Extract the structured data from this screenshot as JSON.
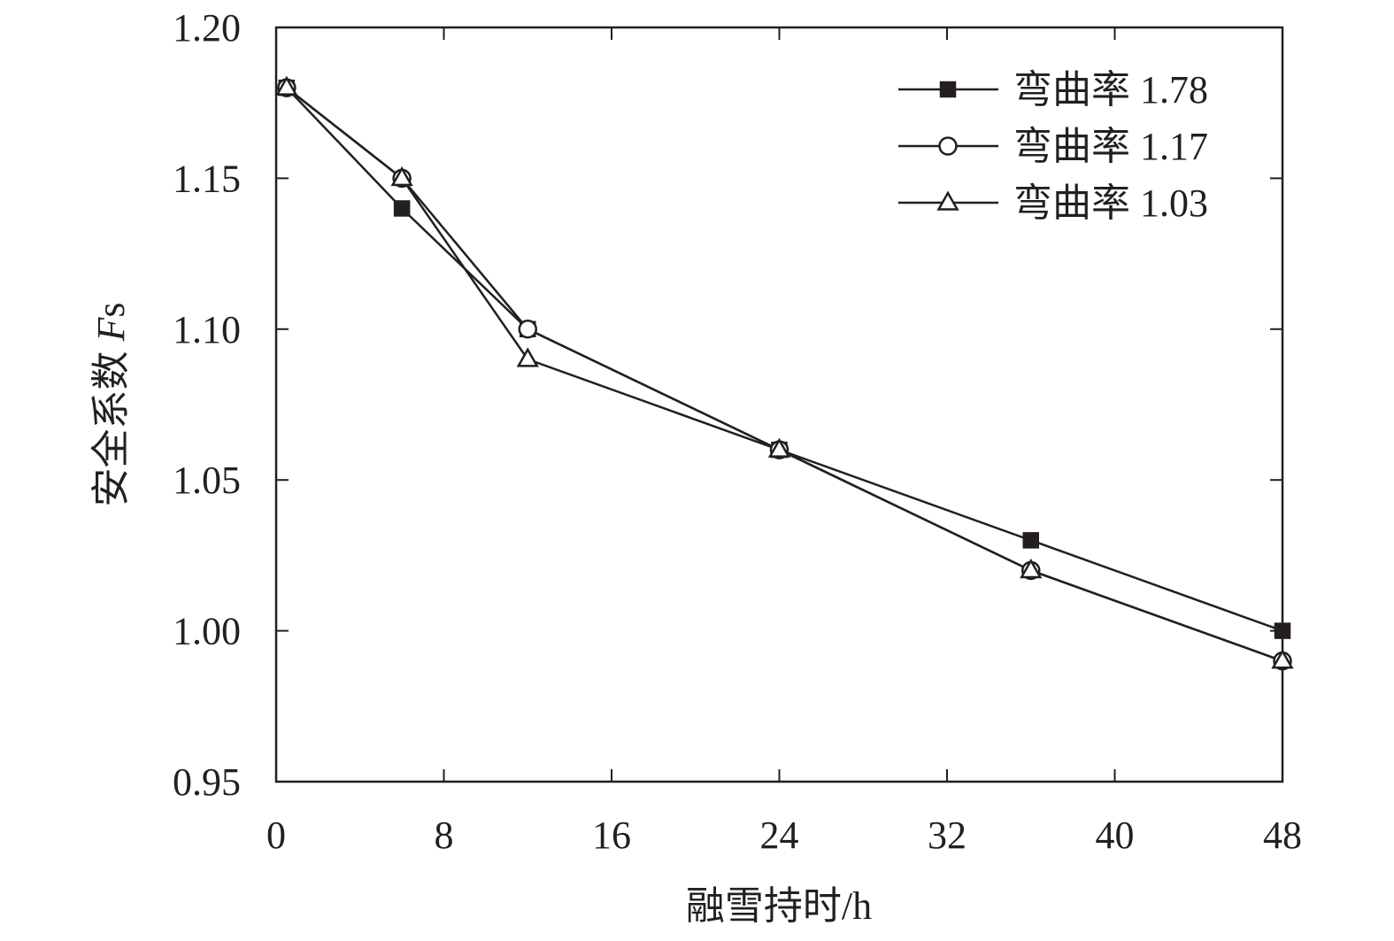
{
  "chart_data": {
    "type": "line",
    "xlabel": "融雪持时/h",
    "ylabel_prefix": "安全系数 ",
    "ylabel_italic": "F",
    "ylabel_suffix": "s",
    "xlim": [
      0,
      48
    ],
    "ylim": [
      0.95,
      1.2
    ],
    "xticks": [
      0,
      8,
      16,
      24,
      32,
      40,
      48
    ],
    "xtick_labels": [
      "0",
      "8",
      "16",
      "24",
      "32",
      "40",
      "48"
    ],
    "yticks": [
      0.95,
      1.0,
      1.05,
      1.1,
      1.15,
      1.2
    ],
    "ytick_labels": [
      "0.95",
      "1.00",
      "1.05",
      "1.10",
      "1.15",
      "1.20"
    ],
    "grid": false,
    "legend_position": "top-right",
    "x": [
      0.5,
      6,
      12,
      24,
      36,
      48
    ],
    "series": [
      {
        "name": "弯曲率 1.78",
        "marker": "filled-square",
        "values": [
          1.18,
          1.14,
          1.1,
          1.06,
          1.03,
          1.0
        ]
      },
      {
        "name": "弯曲率 1.17",
        "marker": "open-circle",
        "values": [
          1.18,
          1.15,
          1.1,
          1.06,
          1.02,
          0.99
        ]
      },
      {
        "name": "弯曲率 1.03",
        "marker": "open-triangle",
        "values": [
          1.18,
          1.15,
          1.09,
          1.06,
          1.02,
          0.99
        ]
      }
    ],
    "colors": {
      "line": "#231f20",
      "marker_fill": "#231f20",
      "open_fill": "#ffffff"
    }
  }
}
